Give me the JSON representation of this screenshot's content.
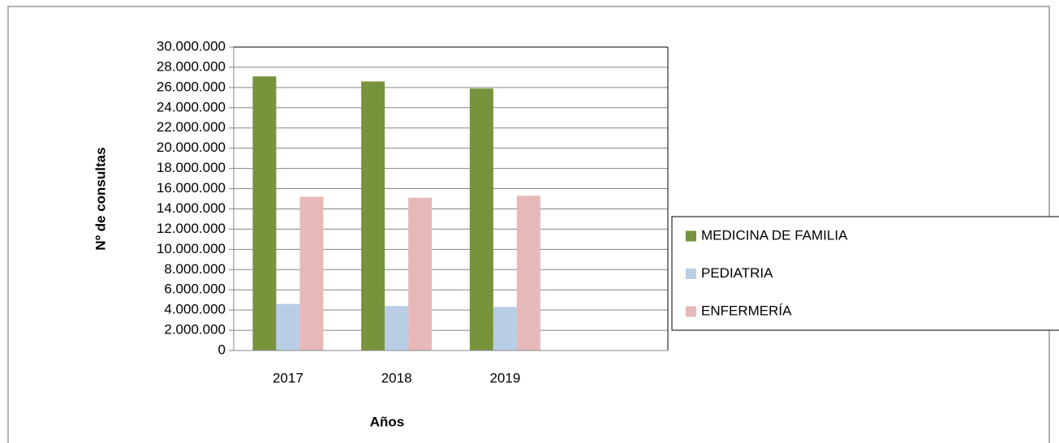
{
  "chart_data": {
    "type": "bar",
    "xlabel": "Años",
    "ylabel": "Nº  de consultas",
    "categories": [
      "2017",
      "2018",
      "2019",
      null
    ],
    "series": [
      {
        "name": "MEDICINA DE FAMILIA",
        "color": "#77933c",
        "values": [
          27100000,
          26600000,
          25900000,
          null
        ]
      },
      {
        "name": "PEDIATRIA",
        "color": "#b9cde5",
        "values": [
          4600000,
          4400000,
          4300000,
          null
        ]
      },
      {
        "name": "ENFERMERÍA",
        "color": "#e6b9b8",
        "values": [
          15200000,
          15100000,
          15300000,
          null
        ]
      }
    ],
    "ylim": [
      0,
      30000000
    ],
    "yticks": [
      0,
      {
        "value": 2000000,
        "label": "2.000.000"
      },
      {
        "value": 4000000,
        "label": "4.000.000"
      },
      {
        "value": 6000000,
        "label": "6.000.000"
      },
      {
        "value": 8000000,
        "label": "8.000.000"
      },
      {
        "value": 10000000,
        "label": "10.000.000"
      },
      {
        "value": 12000000,
        "label": "12.000.000"
      },
      {
        "value": 14000000,
        "label": "14.000.000"
      },
      {
        "value": 16000000,
        "label": "16.000.000"
      },
      {
        "value": 18000000,
        "label": "18.000.000"
      },
      {
        "value": 20000000,
        "label": "20.000.000"
      },
      {
        "value": 22000000,
        "label": "22.000.000"
      },
      {
        "value": 24000000,
        "label": "24.000.000"
      },
      {
        "value": 26000000,
        "label": "26.000.000"
      },
      {
        "value": 28000000,
        "label": "28.000.000"
      },
      {
        "value": 30000000,
        "label": "30.000.000"
      }
    ],
    "grid": true,
    "legend": "right"
  }
}
